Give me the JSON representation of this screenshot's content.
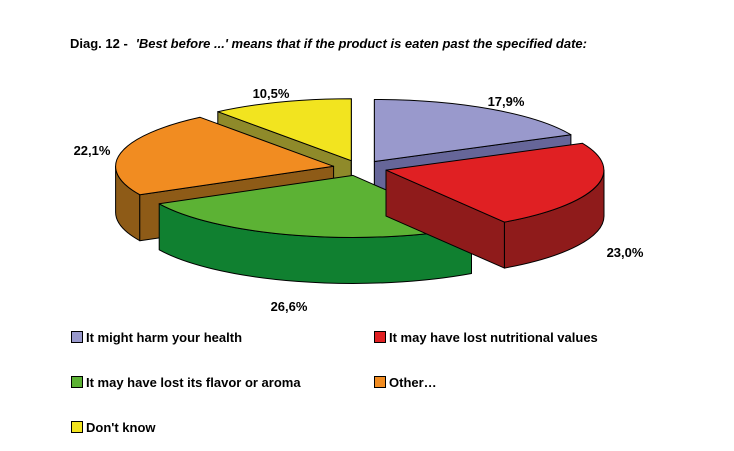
{
  "title": {
    "prefix": "Diag. 12 -",
    "text": "'Best before ...' means that if the product is eaten past the specified date:"
  },
  "chart_data": {
    "type": "pie",
    "style": "3d-exploded",
    "start_angle_deg": 0,
    "direction": "clockwise",
    "values_are_percent": true,
    "legend_position": "bottom-left, two columns",
    "background": "#FFFFFF",
    "outline_color": "#000000",
    "slices": [
      {
        "label": "It might harm your health",
        "value": 17.9,
        "display": "17,9%",
        "color": "#9999CC",
        "side_color": "#666699"
      },
      {
        "label": "It may have lost nutritional values",
        "value": 23.0,
        "display": "23,0%",
        "color": "#E02023",
        "side_color": "#8F1B1B"
      },
      {
        "label": "It may have lost its flavor or aroma",
        "value": 26.6,
        "display": "26,6%",
        "color": "#5CB234",
        "side_color": "#108030"
      },
      {
        "label": "Other…",
        "value": 22.1,
        "display": "22,1%",
        "color": "#F18C21",
        "side_color": "#8E5B17"
      },
      {
        "label": "Don't know",
        "value": 10.5,
        "display": "10,5%",
        "color": "#F2E41F",
        "side_color": "#8F8A2A"
      }
    ]
  }
}
